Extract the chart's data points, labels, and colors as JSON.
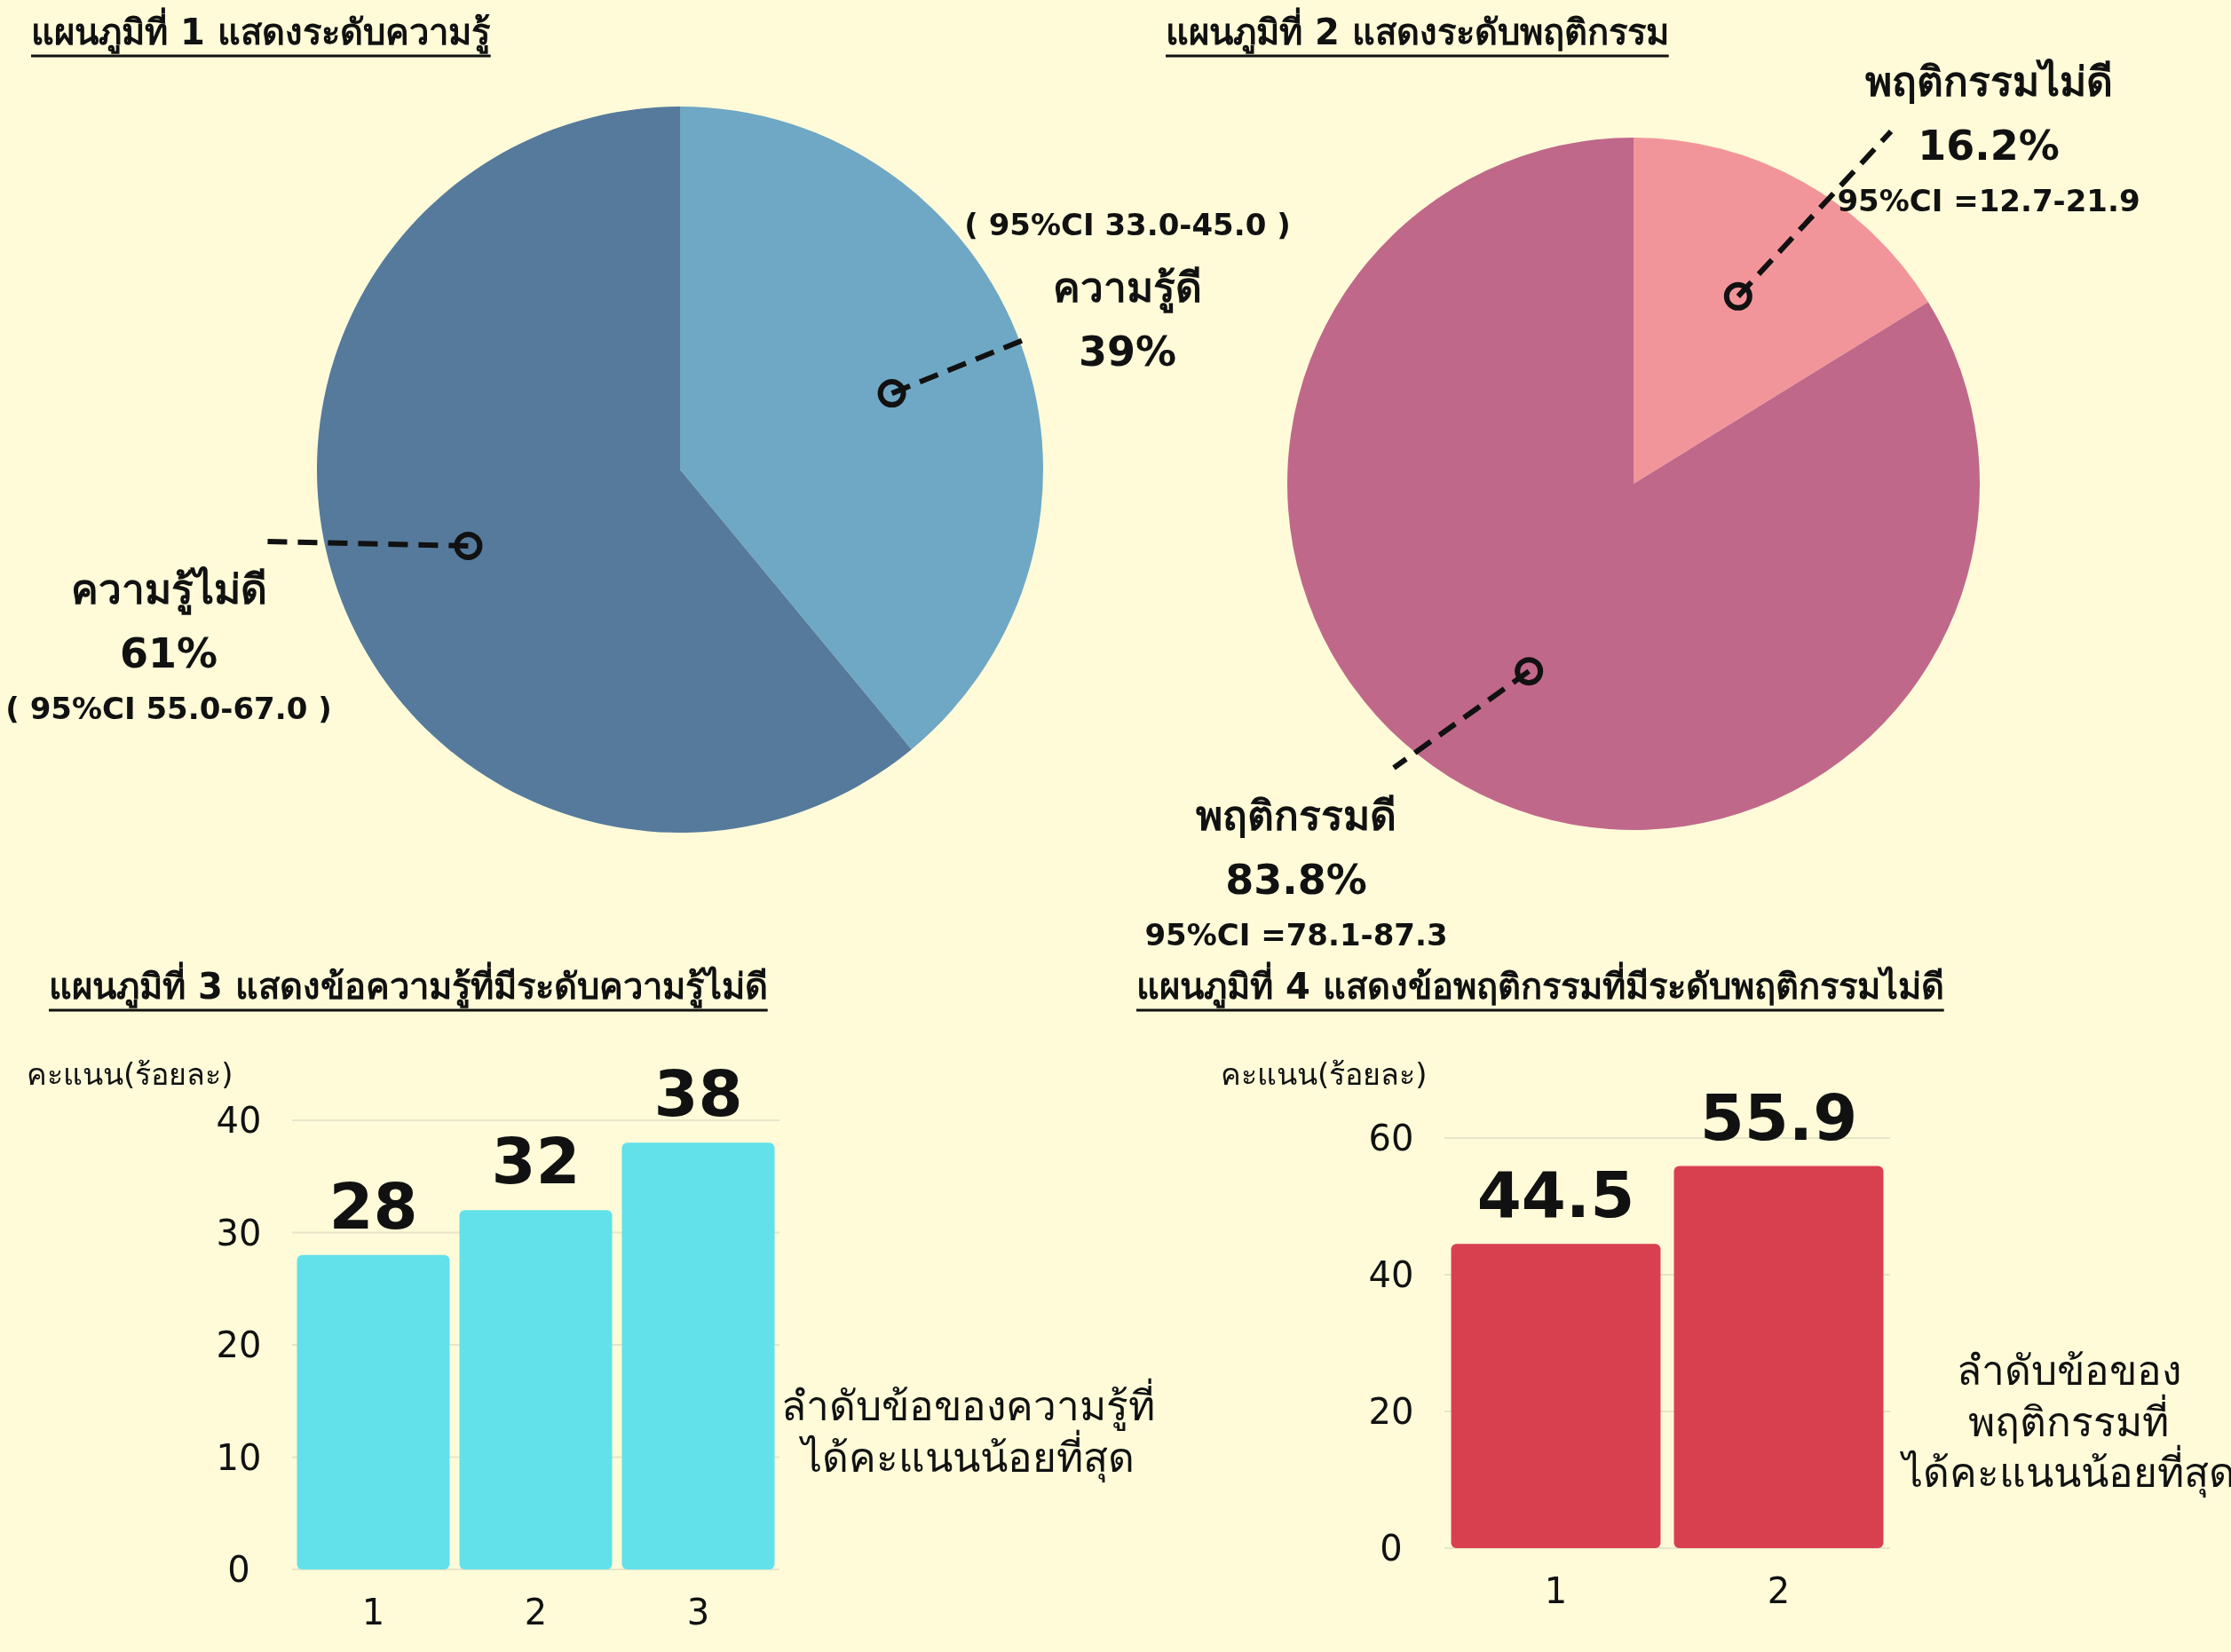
{
  "chart_data": [
    {
      "type": "pie",
      "title": "แผนภูมิที่ 1 แสดงระดับความรู้",
      "categories": [
        "ความรู้ดี",
        "ความรู้ไม่ดี"
      ],
      "values": [
        39,
        61
      ],
      "colors": [
        "#6fa8c4",
        "#557a9c"
      ],
      "value_labels": [
        "39%",
        "61%"
      ],
      "annotations": [
        "( 95%CI 33.0-45.0 )",
        "( 95%CI 55.0-67.0 )"
      ]
    },
    {
      "type": "pie",
      "title": "แผนภูมิที่ 2 แสดงระดับพฤติกรรม",
      "categories": [
        "พฤติกรรมไม่ดี",
        "พฤติกรรมดี"
      ],
      "values": [
        16.2,
        83.8
      ],
      "colors": [
        "#f2959b",
        "#c0688a"
      ],
      "value_labels": [
        "16.2%",
        "83.8%"
      ],
      "annotations": [
        "95%CI =12.7-21.9",
        "95%CI =78.1-87.3"
      ]
    },
    {
      "type": "bar",
      "title": "แผนภูมิที่ 3 แสดงข้อความรู้ที่มีระดับความรู้ไม่ดี",
      "ylabel": "คะแนน(ร้อยละ)",
      "xlabel": "ลำดับข้อของความรู้ที่\nได้คะแนนน้อยที่สุด",
      "categories": [
        "1",
        "2",
        "3"
      ],
      "values": [
        28,
        32,
        38
      ],
      "color": "#62e1ea",
      "ylim": [
        0,
        40
      ],
      "yticks": [
        0,
        10,
        20,
        30,
        40
      ],
      "grid": "y",
      "data_labels": true
    },
    {
      "type": "bar",
      "title": "แผนภูมิที่ 4 แสดงข้อพฤติกรรมที่มีระดับพฤติกรรมไม่ดี",
      "ylabel": "คะแนน(ร้อยละ)",
      "xlabel": "ลำดับข้อของ\nพฤติกรรมที่\nได้คะแนนน้อยที่สุด",
      "categories": [
        "1",
        "2"
      ],
      "values": [
        44.5,
        55.9
      ],
      "color": "#d9404f",
      "ylim": [
        0,
        60
      ],
      "yticks": [
        0,
        20,
        40,
        60
      ],
      "grid": "y",
      "data_labels": true
    }
  ]
}
